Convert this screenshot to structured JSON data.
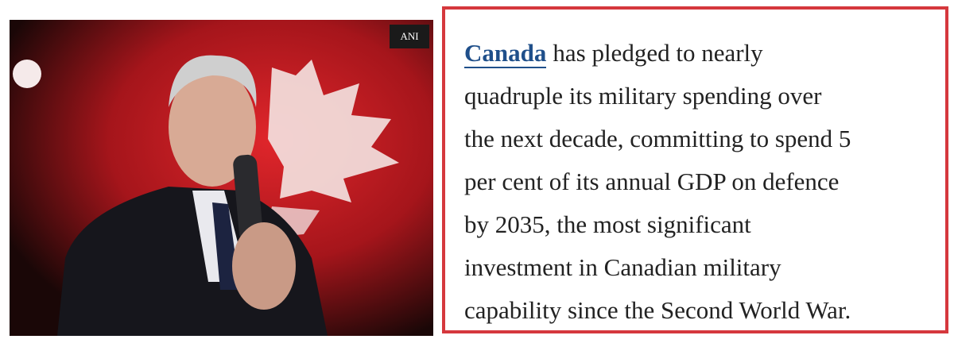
{
  "image": {
    "credit": "ANI"
  },
  "article": {
    "link": "Canada",
    "lines": [
      "has pledged to nearly",
      "quadruple its military spending over",
      "the next decade, committing to spend 5",
      "per cent of its annual GDP on defence",
      "by 2035, the most significant",
      "investment in Canadian military",
      "capability since the Second World War."
    ]
  }
}
